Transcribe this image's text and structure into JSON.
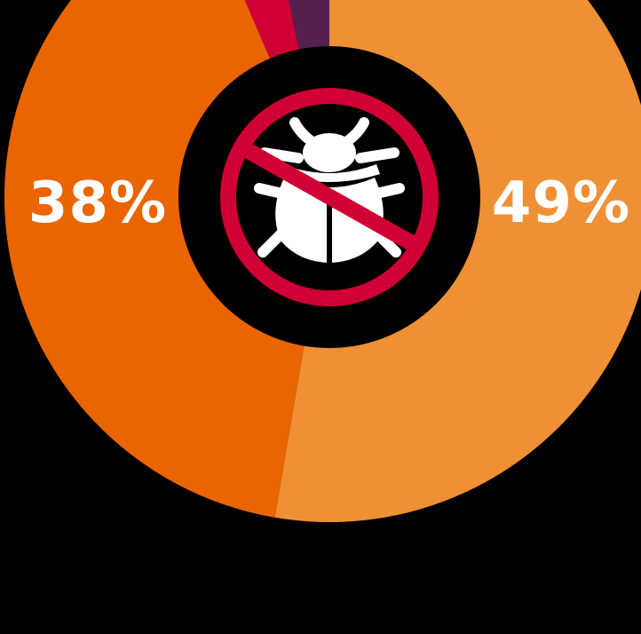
{
  "chart_data": {
    "type": "pie",
    "title": "",
    "slices": [
      {
        "label": "49%",
        "value": 49,
        "color": "#ef9035"
      },
      {
        "label": "38%",
        "value": 38,
        "color": "#ea6500"
      },
      {
        "label": "",
        "value": 3,
        "color": "#d10034"
      },
      {
        "label": "",
        "value": 3,
        "color": "#55214c"
      }
    ],
    "center_icon": "no-bugs-icon"
  },
  "colors": {
    "background": "#000000",
    "center_ring": "#d10034",
    "center_icon": "#ffffff"
  }
}
